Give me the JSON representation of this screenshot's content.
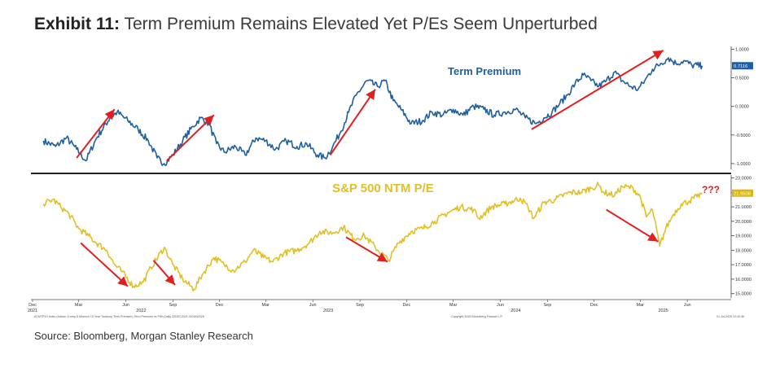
{
  "header": {
    "exhibit_label": "Exhibit 11:",
    "title": "Term Premium Remains Elevated Yet P/Es Seem Unperturbed"
  },
  "source": "Source: Bloomberg, Morgan Stanley Research",
  "colors": {
    "term_premium_line": "#1f5fa0",
    "pe_line": "#e2bf24",
    "arrow": "#e02020",
    "pe_label": "#e2bf24",
    "tp_label": "#1f5fa0",
    "badge_blue": "#1f5fa0",
    "badge_yellow": "#d9b51a"
  },
  "footnotes": {
    "left": "ACMTP10 Index (Adrian Crump & Moench 10 Year Treasury Term Premium) Term Premium vs P/Es Daily 22DEC2021-30JUN2025",
    "center": "Copyright 2025 Bloomberg Finance L.P.",
    "right": "01-Jul-2025 12:40:36"
  },
  "chart_data": [
    {
      "type": "line",
      "panel": "top",
      "label": "Term Premium",
      "ylim": [
        -1.1,
        1.05
      ],
      "yticks": [
        "1.0000",
        "0.5000",
        "0.0000",
        "-0.5000",
        "-1.0000"
      ],
      "ytick_values": [
        1.0,
        0.5,
        0.0,
        -0.5,
        -1.0
      ],
      "last_value_badge": "0.7116",
      "last_value": 0.7116,
      "series": [
        {
          "name": "Term Premium",
          "points": [
            [
              "2021-12-22",
              -0.6
            ],
            [
              "2022-01-15",
              -0.7
            ],
            [
              "2022-02-05",
              -0.55
            ],
            [
              "2022-02-25",
              -0.75
            ],
            [
              "2022-03-15",
              -0.95
            ],
            [
              "2022-04-05",
              -0.55
            ],
            [
              "2022-05-01",
              -0.2
            ],
            [
              "2022-05-15",
              -0.1
            ],
            [
              "2022-06-05",
              -0.25
            ],
            [
              "2022-06-25",
              -0.4
            ],
            [
              "2022-07-15",
              -0.6
            ],
            [
              "2022-08-01",
              -0.9
            ],
            [
              "2022-08-15",
              -1.0
            ],
            [
              "2022-09-01",
              -0.85
            ],
            [
              "2022-09-20",
              -0.6
            ],
            [
              "2022-10-10",
              -0.35
            ],
            [
              "2022-10-25",
              -0.2
            ],
            [
              "2022-11-10",
              -0.3
            ],
            [
              "2022-11-25",
              -0.65
            ],
            [
              "2022-12-10",
              -0.8
            ],
            [
              "2023-01-01",
              -0.7
            ],
            [
              "2023-01-20",
              -0.85
            ],
            [
              "2023-02-10",
              -0.55
            ],
            [
              "2023-03-01",
              -0.6
            ],
            [
              "2023-03-20",
              -0.75
            ],
            [
              "2023-04-10",
              -0.6
            ],
            [
              "2023-05-01",
              -0.7
            ],
            [
              "2023-05-20",
              -0.65
            ],
            [
              "2023-06-10",
              -0.85
            ],
            [
              "2023-06-25",
              -0.9
            ],
            [
              "2023-07-10",
              -0.7
            ],
            [
              "2023-07-25",
              -0.45
            ],
            [
              "2023-08-10",
              -0.1
            ],
            [
              "2023-08-25",
              0.2
            ],
            [
              "2023-09-15",
              0.45
            ],
            [
              "2023-10-05",
              0.35
            ],
            [
              "2023-10-20",
              0.45
            ],
            [
              "2023-11-05",
              0.1
            ],
            [
              "2023-11-20",
              -0.05
            ],
            [
              "2023-12-10",
              -0.3
            ],
            [
              "2024-01-01",
              -0.25
            ],
            [
              "2024-01-20",
              -0.1
            ],
            [
              "2024-02-10",
              -0.15
            ],
            [
              "2024-03-01",
              -0.05
            ],
            [
              "2024-03-20",
              -0.15
            ],
            [
              "2024-04-10",
              0.0
            ],
            [
              "2024-04-30",
              -0.05
            ],
            [
              "2024-05-20",
              -0.15
            ],
            [
              "2024-06-10",
              -0.1
            ],
            [
              "2024-07-01",
              -0.05
            ],
            [
              "2024-07-20",
              -0.2
            ],
            [
              "2024-08-10",
              -0.3
            ],
            [
              "2024-08-25",
              -0.2
            ],
            [
              "2024-09-10",
              -0.1
            ],
            [
              "2024-09-25",
              0.05
            ],
            [
              "2024-10-10",
              0.2
            ],
            [
              "2024-10-25",
              0.4
            ],
            [
              "2024-11-10",
              0.55
            ],
            [
              "2024-11-25",
              0.45
            ],
            [
              "2024-12-10",
              0.35
            ],
            [
              "2024-12-25",
              0.45
            ],
            [
              "2025-01-10",
              0.6
            ],
            [
              "2025-01-25",
              0.45
            ],
            [
              "2025-02-10",
              0.35
            ],
            [
              "2025-02-25",
              0.3
            ],
            [
              "2025-03-10",
              0.45
            ],
            [
              "2025-03-25",
              0.65
            ],
            [
              "2025-04-10",
              0.75
            ],
            [
              "2025-04-25",
              0.85
            ],
            [
              "2025-05-10",
              0.75
            ],
            [
              "2025-05-25",
              0.8
            ],
            [
              "2025-06-10",
              0.72
            ],
            [
              "2025-06-30",
              0.7116
            ]
          ]
        }
      ],
      "arrows": [
        {
          "from": [
            "2022-02-25",
            -0.9
          ],
          "to": [
            "2022-05-10",
            -0.05
          ]
        },
        {
          "from": [
            "2022-08-20",
            -0.95
          ],
          "to": [
            "2022-11-20",
            -0.15
          ]
        },
        {
          "from": [
            "2023-07-05",
            -0.85
          ],
          "to": [
            "2023-10-01",
            0.3
          ]
        },
        {
          "from": [
            "2024-08-01",
            -0.4
          ],
          "to": [
            "2025-04-15",
            0.98
          ]
        }
      ]
    },
    {
      "type": "line",
      "panel": "bottom",
      "label": "S&P 500 NTM P/E",
      "annotation": "???",
      "ylim": [
        14.7,
        23.2
      ],
      "yticks": [
        "23.0000",
        "22.0000",
        "21.0000",
        "20.0000",
        "19.0000",
        "18.0000",
        "17.0000",
        "16.0000",
        "15.0000"
      ],
      "ytick_values": [
        23,
        22,
        21,
        20,
        19,
        18,
        17,
        16,
        15
      ],
      "last_value_badge": "21.9508",
      "last_value": 21.9508,
      "series": [
        {
          "name": "S&P 500 NTM P/E",
          "points": [
            [
              "2021-12-22",
              21.2
            ],
            [
              "2022-01-10",
              21.5
            ],
            [
              "2022-01-25",
              21.0
            ],
            [
              "2022-02-10",
              20.5
            ],
            [
              "2022-03-01",
              19.5
            ],
            [
              "2022-03-20",
              19.0
            ],
            [
              "2022-04-05",
              18.5
            ],
            [
              "2022-04-25",
              18.0
            ],
            [
              "2022-05-10",
              17.0
            ],
            [
              "2022-05-25",
              16.5
            ],
            [
              "2022-06-16",
              15.5
            ],
            [
              "2022-07-05",
              15.8
            ],
            [
              "2022-07-20",
              16.8
            ],
            [
              "2022-08-15",
              18.2
            ],
            [
              "2022-09-01",
              17.0
            ],
            [
              "2022-09-20",
              16.0
            ],
            [
              "2022-10-12",
              15.3
            ],
            [
              "2022-10-28",
              16.3
            ],
            [
              "2022-11-20",
              17.5
            ],
            [
              "2022-12-10",
              17.0
            ],
            [
              "2022-12-28",
              16.6
            ],
            [
              "2023-01-20",
              17.2
            ],
            [
              "2023-02-05",
              18.0
            ],
            [
              "2023-02-25",
              17.5
            ],
            [
              "2023-03-15",
              17.2
            ],
            [
              "2023-04-05",
              17.8
            ],
            [
              "2023-05-01",
              18.0
            ],
            [
              "2023-05-25",
              18.5
            ],
            [
              "2023-06-15",
              19.3
            ],
            [
              "2023-07-10",
              19.2
            ],
            [
              "2023-07-31",
              19.6
            ],
            [
              "2023-08-20",
              18.8
            ],
            [
              "2023-09-10",
              19.0
            ],
            [
              "2023-10-01",
              18.2
            ],
            [
              "2023-10-27",
              17.3
            ],
            [
              "2023-11-15",
              18.5
            ],
            [
              "2023-12-10",
              19.3
            ],
            [
              "2024-01-01",
              19.5
            ],
            [
              "2024-01-25",
              20.0
            ],
            [
              "2024-02-20",
              20.6
            ],
            [
              "2024-03-15",
              21.0
            ],
            [
              "2024-04-10",
              20.8
            ],
            [
              "2024-04-20",
              20.2
            ],
            [
              "2024-05-15",
              21.0
            ],
            [
              "2024-06-10",
              21.2
            ],
            [
              "2024-07-10",
              21.6
            ],
            [
              "2024-07-25",
              21.0
            ],
            [
              "2024-08-05",
              20.2
            ],
            [
              "2024-08-25",
              21.3
            ],
            [
              "2024-09-15",
              21.5
            ],
            [
              "2024-10-15",
              22.0
            ],
            [
              "2024-11-05",
              22.0
            ],
            [
              "2024-11-25",
              22.3
            ],
            [
              "2024-12-10",
              22.5
            ],
            [
              "2024-12-20",
              22.0
            ],
            [
              "2025-01-10",
              21.8
            ],
            [
              "2025-01-25",
              22.4
            ],
            [
              "2025-02-15",
              22.3
            ],
            [
              "2025-03-01",
              21.7
            ],
            [
              "2025-03-13",
              20.3
            ],
            [
              "2025-03-25",
              20.8
            ],
            [
              "2025-04-08",
              18.3
            ],
            [
              "2025-04-20",
              19.5
            ],
            [
              "2025-05-05",
              20.5
            ],
            [
              "2025-05-20",
              21.2
            ],
            [
              "2025-06-05",
              21.4
            ],
            [
              "2025-06-20",
              21.7
            ],
            [
              "2025-06-30",
              21.9508
            ]
          ]
        }
      ],
      "arrows": [
        {
          "from": [
            "2022-03-05",
            18.5
          ],
          "to": [
            "2022-06-05",
            15.5
          ]
        },
        {
          "from": [
            "2022-07-25",
            17.3
          ],
          "to": [
            "2022-09-05",
            15.6
          ]
        },
        {
          "from": [
            "2023-08-05",
            18.9
          ],
          "to": [
            "2023-10-25",
            17.2
          ]
        },
        {
          "from": [
            "2024-12-25",
            20.8
          ],
          "to": [
            "2025-04-05",
            18.6
          ]
        }
      ]
    }
  ],
  "x_axis": {
    "start": "2021-12-01",
    "end": "2025-07-20",
    "ticks": [
      {
        "label": "Dec",
        "date": "2021-12-01"
      },
      {
        "label": "Mar",
        "date": "2022-03-01"
      },
      {
        "label": "Jun",
        "date": "2022-06-01"
      },
      {
        "label": "Sep",
        "date": "2022-09-01"
      },
      {
        "label": "Dec",
        "date": "2022-12-01"
      },
      {
        "label": "Mar",
        "date": "2023-03-01"
      },
      {
        "label": "Jun",
        "date": "2023-06-01"
      },
      {
        "label": "Sep",
        "date": "2023-09-01"
      },
      {
        "label": "Dec",
        "date": "2023-12-01"
      },
      {
        "label": "Mar",
        "date": "2024-03-01"
      },
      {
        "label": "Jun",
        "date": "2024-06-01"
      },
      {
        "label": "Sep",
        "date": "2024-09-01"
      },
      {
        "label": "Dec",
        "date": "2024-12-01"
      },
      {
        "label": "Mar",
        "date": "2025-03-01"
      },
      {
        "label": "Jun",
        "date": "2025-06-01"
      }
    ],
    "years": [
      {
        "label": "2021",
        "date": "2021-12-01"
      },
      {
        "label": "2022",
        "date": "2022-07-01"
      },
      {
        "label": "2023",
        "date": "2023-07-01"
      },
      {
        "label": "2024",
        "date": "2024-07-01"
      },
      {
        "label": "2025",
        "date": "2025-04-15"
      }
    ]
  }
}
